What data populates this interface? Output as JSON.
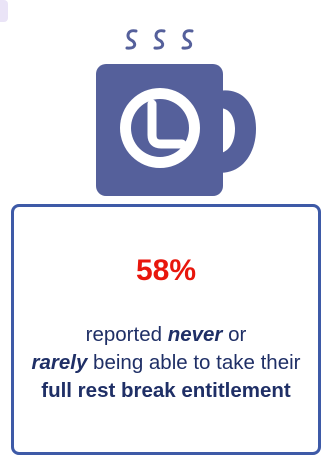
{
  "colors": {
    "icon": "#55609b",
    "icon_face": "#ffffff",
    "card_border": "#3e5aa7",
    "stat_value": "#e8160c",
    "text": "#1f2f66"
  },
  "icons": [
    "coffee-mug-icon",
    "clock-icon",
    "steam-icon"
  ],
  "stat": {
    "value": "58%",
    "desc_1": "reported ",
    "emph_never": "never",
    "desc_2": " or",
    "emph_rarely": "rarely",
    "desc_3": " being able to take their ",
    "bold_phrase": "full rest break entitlement"
  }
}
